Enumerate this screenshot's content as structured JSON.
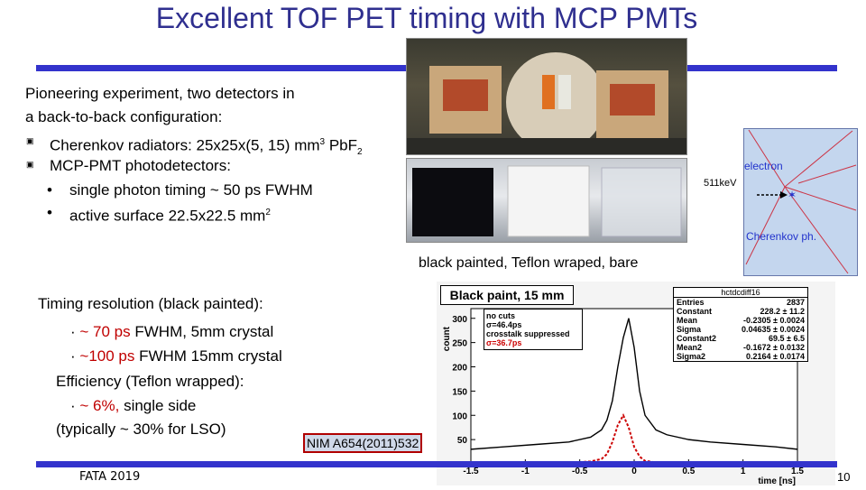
{
  "slide": {
    "title": "Excellent TOF PET timing with MCP PMTs",
    "intro_line1": "Pioneering experiment, two detectors in",
    "intro_line2": "a back-to-back  configuration:",
    "b1_pre": "Cherenkov radiators:  25x25x(5, 15) mm",
    "b1_sup": "3",
    "b1_post": " PbF",
    "b1_sub": "2",
    "b2": "MCP-PMT photodetectors:",
    "s1": "single photon timing ~ 50 ps FWHM",
    "s2_pre": "active surface 22.5x22.5 mm",
    "s2_sup": "2",
    "photo_caption": "black painted, Teflon wraped, bare",
    "timing_heading": "Timing resolution (black painted):",
    "t1_red": "~ 70 ps ",
    "t1_rest": "FWHM, 5mm crystal",
    "t2_red": "~100 ps ",
    "t2_rest": "FWHM 15mm crystal",
    "eff_heading": "Efficiency (Teflon wrapped):",
    "e1_red": "~ 6%, ",
    "e1_rest": "single side",
    "e2": "(typically ~ 30% for LSO)",
    "reference": "NIM A654(2011)532",
    "footer_left": "FATA 2019",
    "page_number": "10",
    "diagram_electron": "electron",
    "diagram_energy": "511keV",
    "diagram_cherenkov": "Cherenkov ph."
  },
  "chart_data": {
    "type": "line",
    "title": "Black paint, 15 mm",
    "xlabel": "time [ns]",
    "ylabel": "count",
    "xlim": [
      -1.5,
      1.5
    ],
    "ylim": [
      0,
      320
    ],
    "x_ticks": [
      "-1.5",
      "-1",
      "-0.5",
      "0",
      "0.5",
      "1",
      "1.5"
    ],
    "y_ticks": [
      "0",
      "50",
      "100",
      "150",
      "200",
      "250",
      "300"
    ],
    "legend": [
      "no cuts",
      "σ=46.4ps",
      "crosstalk suppressed",
      "σ=36.7ps"
    ],
    "series": [
      {
        "name": "no cuts",
        "color": "#000000",
        "x": [
          -1.5,
          -1.2,
          -0.9,
          -0.6,
          -0.4,
          -0.3,
          -0.25,
          -0.2,
          -0.15,
          -0.1,
          -0.05,
          0,
          0.05,
          0.1,
          0.2,
          0.3,
          0.5,
          0.7,
          1.0,
          1.3,
          1.5
        ],
        "y": [
          30,
          35,
          40,
          45,
          55,
          70,
          90,
          130,
          200,
          260,
          300,
          240,
          150,
          100,
          70,
          60,
          50,
          45,
          40,
          35,
          30
        ]
      },
      {
        "name": "crosstalk suppressed",
        "color": "#cc0000",
        "x": [
          -1.5,
          -0.6,
          -0.4,
          -0.3,
          -0.25,
          -0.2,
          -0.15,
          -0.1,
          -0.05,
          0,
          0.05,
          0.1,
          0.2,
          0.4,
          0.6,
          1.5
        ],
        "y": [
          0,
          2,
          5,
          10,
          20,
          45,
          80,
          100,
          75,
          35,
          15,
          6,
          3,
          1,
          0,
          0
        ]
      }
    ],
    "stats_box": {
      "header": "hctdcdiff16",
      "rows": [
        {
          "k": "Entries",
          "v": "2837"
        },
        {
          "k": "Constant",
          "v": "228.2 ± 11.2"
        },
        {
          "k": "Mean",
          "v": "-0.2305 ± 0.0024"
        },
        {
          "k": "Sigma",
          "v": "0.04635 ± 0.0024"
        },
        {
          "k": "Constant2",
          "v": "69.5 ± 6.5"
        },
        {
          "k": "Mean2",
          "v": "-0.1672 ± 0.0132"
        },
        {
          "k": "Sigma2",
          "v": "0.2164 ± 0.0174"
        }
      ]
    }
  }
}
